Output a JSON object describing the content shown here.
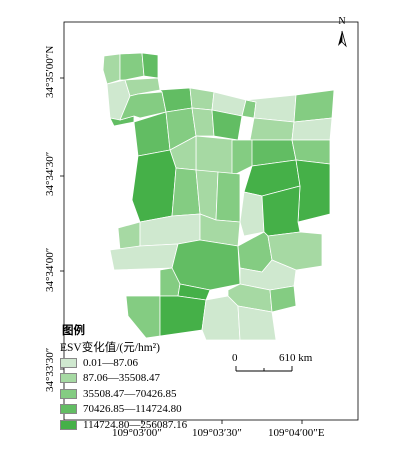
{
  "map": {
    "north_label": "N",
    "lat_labels": [
      "34°35′00″N",
      "34°34′30″",
      "34°34′00″",
      "34°33′30″"
    ],
    "lon_labels": [
      "109°03′00″",
      "109°03′30″",
      "109°04′00″E"
    ],
    "scale": {
      "start": "0",
      "end": "610 km"
    }
  },
  "legend": {
    "title": "图例",
    "subtitle": "ESV变化值/(元/hm²)",
    "classes": [
      {
        "label": "0.01—87.06",
        "color": "#cfe8cf"
      },
      {
        "label": "87.06—35508.47",
        "color": "#a6d9a3"
      },
      {
        "label": "35508.47—70426.85",
        "color": "#84cc82"
      },
      {
        "label": "70426.85—114724.80",
        "color": "#62bd63"
      },
      {
        "label": "114724.80—256087.16",
        "color": "#45b048"
      }
    ]
  }
}
